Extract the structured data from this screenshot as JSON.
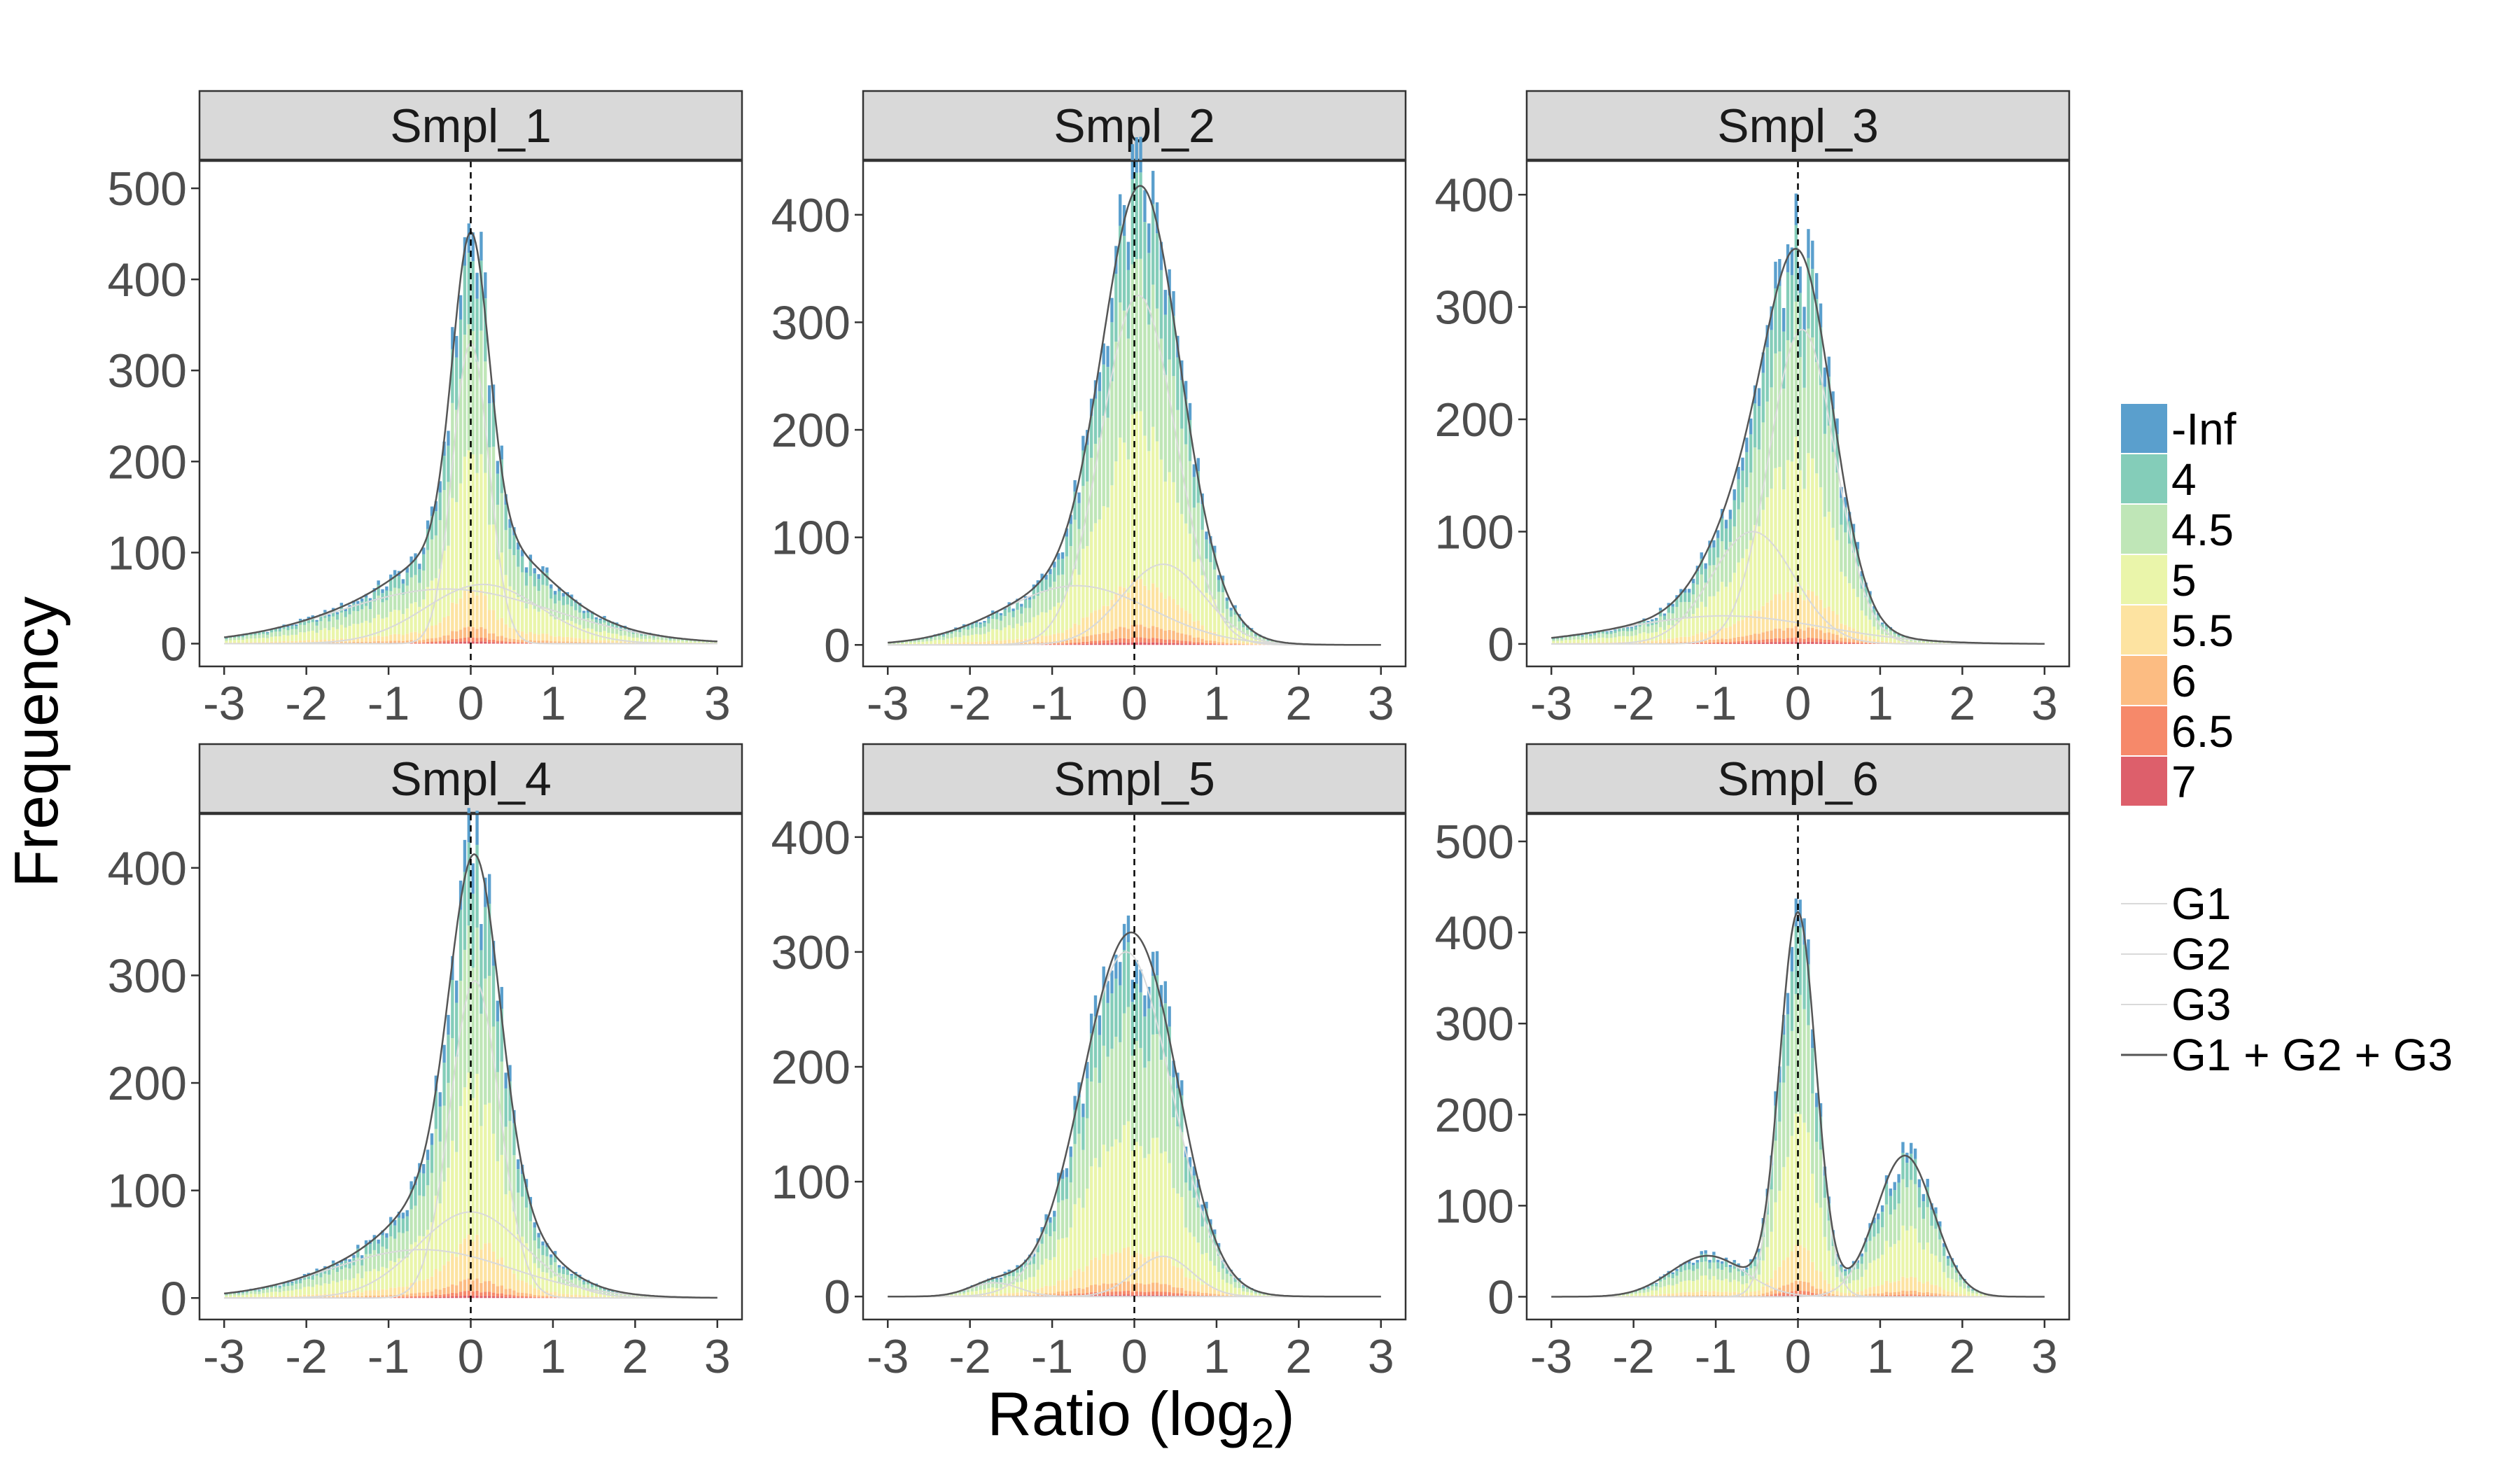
{
  "figure": {
    "xlabel_main": "Ratio (log",
    "xlabel_sub": "2",
    "xlabel_close": ")",
    "ylabel": "Frequency"
  },
  "legend": {
    "fill_entries": [
      {
        "label": "-Inf",
        "color": "#5a9fcd"
      },
      {
        "label": "4",
        "color": "#84cdb9"
      },
      {
        "label": "4.5",
        "color": "#bfe6b7"
      },
      {
        "label": "5",
        "color": "#eaf5aa"
      },
      {
        "label": "5.5",
        "color": "#fde3a1"
      },
      {
        "label": "6",
        "color": "#fcbc82"
      },
      {
        "label": "6.5",
        "color": "#f6896a"
      },
      {
        "label": "7",
        "color": "#dd5f6b"
      }
    ],
    "line_entries": [
      {
        "label": "G1",
        "color": "#d9d9d9"
      },
      {
        "label": "G2",
        "color": "#d9d9d9"
      },
      {
        "label": "G3",
        "color": "#d9d9d9"
      },
      {
        "label": "G1 + G2 + G3",
        "color": "#555555"
      }
    ]
  },
  "chart_data": [
    {
      "type": "bar",
      "title": "Smpl_1",
      "xlim": [
        -3.3,
        3.3
      ],
      "ylim": [
        -25,
        530
      ],
      "xticks": [
        -3,
        -2,
        -1,
        0,
        1,
        2,
        3
      ],
      "yticks": [
        0,
        100,
        200,
        300,
        400,
        500
      ],
      "vline": 0,
      "components": [
        {
          "name": "G1",
          "mean": 0.0,
          "sd": 0.22,
          "amp": 330
        },
        {
          "name": "G2",
          "mean": 0.15,
          "sd": 0.7,
          "amp": 65
        },
        {
          "name": "G3",
          "mean": -0.3,
          "sd": 1.3,
          "amp": 60
        }
      ]
    },
    {
      "type": "bar",
      "title": "Smpl_2",
      "xlim": [
        -3.3,
        3.3
      ],
      "ylim": [
        -20,
        450
      ],
      "xticks": [
        -3,
        -2,
        -1,
        0,
        1,
        2,
        3
      ],
      "yticks": [
        0,
        100,
        200,
        300,
        400
      ],
      "vline": 0,
      "components": [
        {
          "name": "G1",
          "mean": 0.05,
          "sd": 0.45,
          "amp": 325
        },
        {
          "name": "G2",
          "mean": 0.35,
          "sd": 0.5,
          "amp": 75
        },
        {
          "name": "G3",
          "mean": -0.7,
          "sd": 0.9,
          "amp": 55
        }
      ]
    },
    {
      "type": "bar",
      "title": "Smpl_3",
      "xlim": [
        -3.3,
        3.3
      ],
      "ylim": [
        -20,
        430
      ],
      "xticks": [
        -3,
        -2,
        -1,
        0,
        1,
        2,
        3
      ],
      "yticks": [
        0,
        100,
        200,
        300,
        400
      ],
      "vline": 0,
      "components": [
        {
          "name": "G1",
          "mean": 0.05,
          "sd": 0.4,
          "amp": 280
        },
        {
          "name": "G2",
          "mean": -0.55,
          "sd": 0.5,
          "amp": 100
        },
        {
          "name": "G3",
          "mean": -0.9,
          "sd": 1.2,
          "amp": 25
        }
      ]
    },
    {
      "type": "bar",
      "title": "Smpl_4",
      "xlim": [
        -3.3,
        3.3
      ],
      "ylim": [
        -20,
        450
      ],
      "xticks": [
        -3,
        -2,
        -1,
        0,
        1,
        2,
        3
      ],
      "yticks": [
        0,
        100,
        200,
        300,
        400
      ],
      "vline": 0,
      "components": [
        {
          "name": "G1",
          "mean": 0.05,
          "sd": 0.3,
          "amp": 295
        },
        {
          "name": "G2",
          "mean": 0.0,
          "sd": 0.65,
          "amp": 80
        },
        {
          "name": "G3",
          "mean": -0.6,
          "sd": 1.1,
          "amp": 45
        }
      ]
    },
    {
      "type": "bar",
      "title": "Smpl_5",
      "xlim": [
        -3.3,
        3.3
      ],
      "ylim": [
        -20,
        420
      ],
      "xticks": [
        -3,
        -2,
        -1,
        0,
        1,
        2,
        3
      ],
      "yticks": [
        0,
        100,
        200,
        300,
        400
      ],
      "vline": 0,
      "components": [
        {
          "name": "G1",
          "mean": -0.1,
          "sd": 0.55,
          "amp": 300
        },
        {
          "name": "G2",
          "mean": 0.35,
          "sd": 0.35,
          "amp": 35
        },
        {
          "name": "G3",
          "mean": -1.7,
          "sd": 0.3,
          "amp": 12
        }
      ]
    },
    {
      "type": "bar",
      "title": "Smpl_6",
      "xlim": [
        -3.3,
        3.3
      ],
      "ylim": [
        -25,
        530
      ],
      "xticks": [
        -3,
        -2,
        -1,
        0,
        1,
        2,
        3
      ],
      "yticks": [
        0,
        100,
        200,
        300,
        400,
        500
      ],
      "vline": 0,
      "components": [
        {
          "name": "G1",
          "mean": 0.0,
          "sd": 0.22,
          "amp": 420
        },
        {
          "name": "G2",
          "mean": 1.3,
          "sd": 0.35,
          "amp": 155
        },
        {
          "name": "G3",
          "mean": -1.1,
          "sd": 0.45,
          "amp": 45
        }
      ]
    }
  ]
}
